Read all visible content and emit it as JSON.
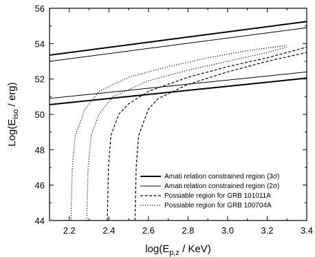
{
  "chart_data": {
    "type": "line",
    "xlabel": {
      "main": "log(E",
      "sub": "p,z",
      "tail": " / KeV)"
    },
    "ylabel": {
      "main": "Log(E",
      "sub": "iso",
      "tail": " / erg)"
    },
    "xlim": [
      2.1,
      3.4
    ],
    "ylim": [
      44,
      56
    ],
    "xticks": [
      "2.2",
      "2.4",
      "2.6",
      "2.8",
      "3.0",
      "3.2",
      "3.4"
    ],
    "yticks": [
      "44",
      "46",
      "48",
      "50",
      "52",
      "54",
      "56"
    ],
    "grid": false,
    "legend_position": "bottom-right",
    "legend": [
      {
        "label": "Amati relation constrained region (3σ)"
      },
      {
        "label": "Amati relation constrained region (2σ)"
      },
      {
        "label": "Possiable region for GRB 101011A"
      },
      {
        "label": "Possiable region for GRB 100704A"
      }
    ],
    "series": [
      {
        "style": "thick",
        "x": [
          2.1,
          3.4
        ],
        "y": [
          53.35,
          55.25
        ]
      },
      {
        "style": "thick",
        "x": [
          2.1,
          3.4
        ],
        "y": [
          50.55,
          52.05
        ]
      },
      {
        "style": "thin",
        "x": [
          2.1,
          3.4
        ],
        "y": [
          53.0,
          54.9
        ]
      },
      {
        "style": "thin",
        "x": [
          2.1,
          3.4
        ],
        "y": [
          50.9,
          52.4
        ]
      },
      {
        "style": "dashed",
        "x": [
          2.392,
          2.398,
          2.41,
          2.45,
          2.5,
          2.6,
          2.8,
          3.0,
          3.2,
          3.4
        ],
        "y": [
          44.0,
          47.0,
          48.8,
          50.0,
          50.6,
          51.3,
          52.1,
          52.7,
          53.2,
          53.8
        ]
      },
      {
        "style": "dashed",
        "x": [
          2.532,
          2.538,
          2.55,
          2.6,
          2.65,
          2.8,
          3.0,
          3.2,
          3.4
        ],
        "y": [
          44.0,
          47.0,
          48.8,
          50.3,
          50.9,
          51.7,
          52.4,
          53.0,
          53.5
        ]
      },
      {
        "style": "dotted",
        "x": [
          2.208,
          2.215,
          2.23,
          2.28,
          2.35,
          2.5,
          2.7,
          2.9,
          3.1,
          3.3
        ],
        "y": [
          44.0,
          47.0,
          48.8,
          50.3,
          51.3,
          52.1,
          52.7,
          53.2,
          53.6,
          53.9
        ]
      },
      {
        "style": "dotted",
        "x": [
          2.288,
          2.295,
          2.31,
          2.35,
          2.42,
          2.6,
          2.8,
          3.0,
          3.2,
          3.3
        ],
        "y": [
          44.0,
          47.0,
          48.8,
          50.0,
          51.0,
          51.9,
          52.5,
          53.0,
          53.5,
          53.8
        ]
      }
    ]
  }
}
